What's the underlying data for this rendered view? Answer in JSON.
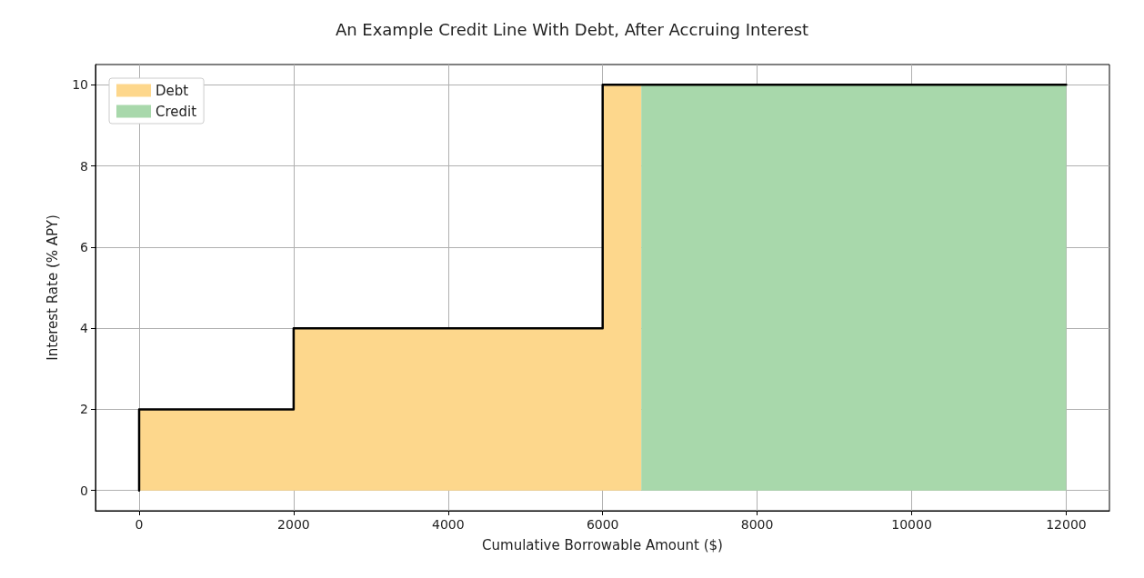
{
  "chart_data": {
    "type": "area",
    "title": "An Example Credit Line With Debt, After Accruing Interest",
    "xlabel": "Cumulative Borrowable Amount ($)",
    "ylabel": "Interest Rate (% APY)",
    "series": [
      {
        "name": "Debt",
        "type": "area",
        "color": "#fdd78c",
        "x": [
          0,
          2000,
          2000,
          6000,
          6000,
          6500
        ],
        "values": [
          2,
          2,
          4,
          4,
          10,
          10
        ]
      },
      {
        "name": "Credit",
        "type": "area",
        "color": "#a8d8ab",
        "x": [
          6500,
          12000
        ],
        "values": [
          10,
          10
        ]
      },
      {
        "type": "line",
        "color": "#000000",
        "x": [
          0,
          0,
          2000,
          2000,
          6000,
          6000,
          12000
        ],
        "values": [
          0,
          2,
          2,
          4,
          4,
          10,
          10
        ]
      }
    ],
    "xlim": [
      -565,
      12560
    ],
    "xticks": [
      0,
      2000,
      4000,
      6000,
      8000,
      10000,
      12000
    ],
    "ylim": [
      -0.5,
      10.5
    ],
    "yticks": [
      0,
      2,
      4,
      6,
      8,
      10
    ],
    "grid": true,
    "legend": "top left",
    "marker": "none",
    "line_style": "solid"
  }
}
